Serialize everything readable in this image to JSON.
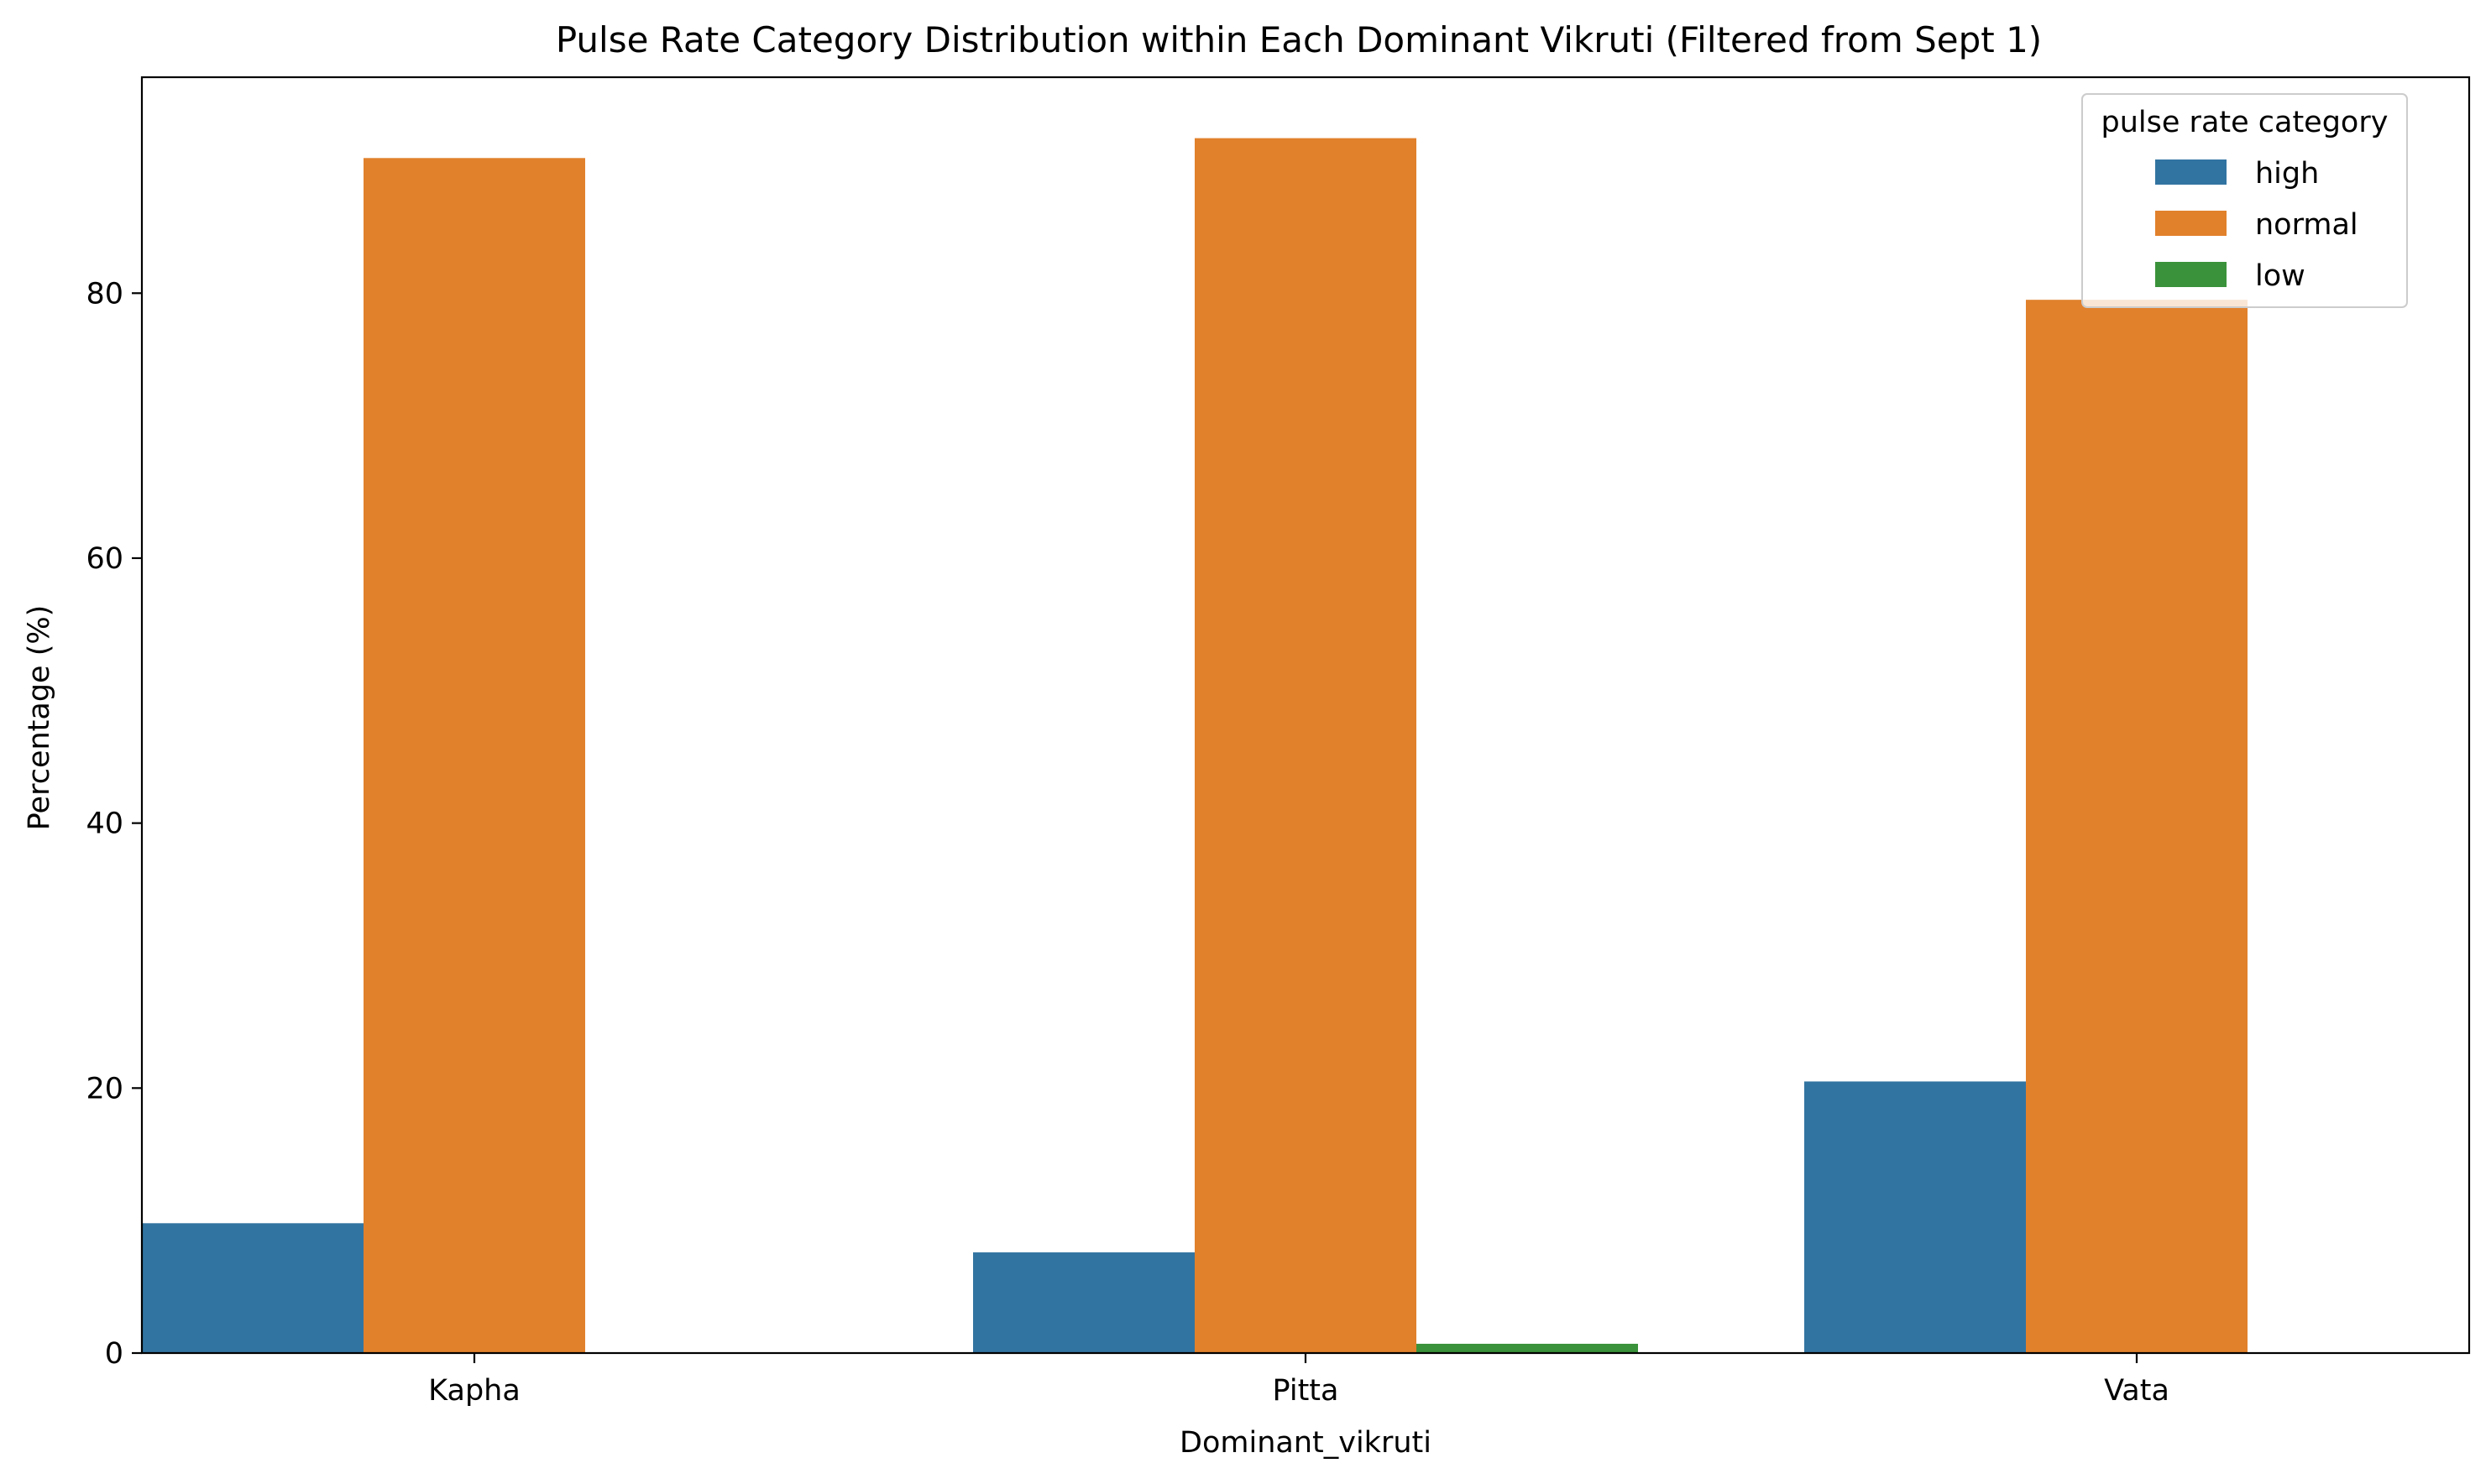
{
  "chart_data": {
    "type": "bar",
    "title": "Pulse Rate Category Distribution within Each Dominant Vikruti (Filtered from Sept 1)",
    "xlabel": "Dominant_vikruti",
    "ylabel": "Percentage (%)",
    "categories": [
      "Kapha",
      "Pitta",
      "Vata"
    ],
    "series": [
      {
        "name": "high",
        "color": "#3274a1",
        "values": [
          9.8,
          7.6,
          20.5
        ]
      },
      {
        "name": "normal",
        "color": "#e1812c",
        "values": [
          90.2,
          91.7,
          79.5
        ]
      },
      {
        "name": "low",
        "color": "#3a923a",
        "values": [
          0.0,
          0.7,
          0.0
        ]
      }
    ],
    "ylim": [
      0,
      96.3
    ],
    "yticks": [
      0,
      20,
      40,
      60,
      80
    ],
    "grid": false,
    "legend": {
      "title": "pulse rate category",
      "position": "top-right"
    }
  }
}
